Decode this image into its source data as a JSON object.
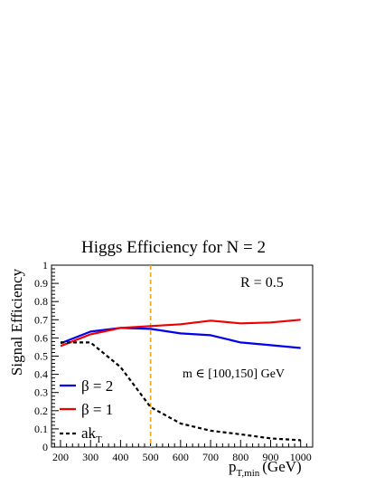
{
  "chart_data": {
    "type": "line",
    "title": "Higgs Efficiency for N = 2",
    "ylabel": "Signal Efficiency",
    "xlabel": {
      "main": "p",
      "sub": "T,min",
      "unit": "(GeV)"
    },
    "xlim": [
      170,
      1040
    ],
    "ylim": [
      0,
      1
    ],
    "x_ticks": [
      200,
      300,
      400,
      500,
      600,
      700,
      800,
      900,
      1000
    ],
    "y_ticks": [
      0,
      0.1,
      0.2,
      0.3,
      0.4,
      0.5,
      0.6,
      0.7,
      0.8,
      0.9,
      1
    ],
    "x": [
      200,
      300,
      400,
      500,
      600,
      700,
      800,
      900,
      1000
    ],
    "series": [
      {
        "key": "beta2",
        "label": "β = 2",
        "color": "#0000ee",
        "style": "solid",
        "values": [
          0.57,
          0.635,
          0.655,
          0.65,
          0.625,
          0.615,
          0.575,
          0.56,
          0.545
        ]
      },
      {
        "key": "beta1",
        "label": "β = 1",
        "color": "#ee0000",
        "style": "solid",
        "values": [
          0.555,
          0.62,
          0.655,
          0.665,
          0.675,
          0.695,
          0.68,
          0.685,
          0.7
        ]
      },
      {
        "key": "akt",
        "label": {
          "main": "ak",
          "sub": "T"
        },
        "color": "#000000",
        "style": "dashed",
        "values": [
          0.575,
          0.575,
          0.44,
          0.22,
          0.13,
          0.09,
          0.07,
          0.048,
          0.038
        ]
      }
    ],
    "vline": {
      "x": 500,
      "color": "#ffaa00",
      "style": "dashed"
    },
    "annotations": {
      "radius": "R = 0.5",
      "mass_window": "m ∈ [100,150] GeV"
    },
    "legend_placement": "bottom-left",
    "grid": false
  }
}
